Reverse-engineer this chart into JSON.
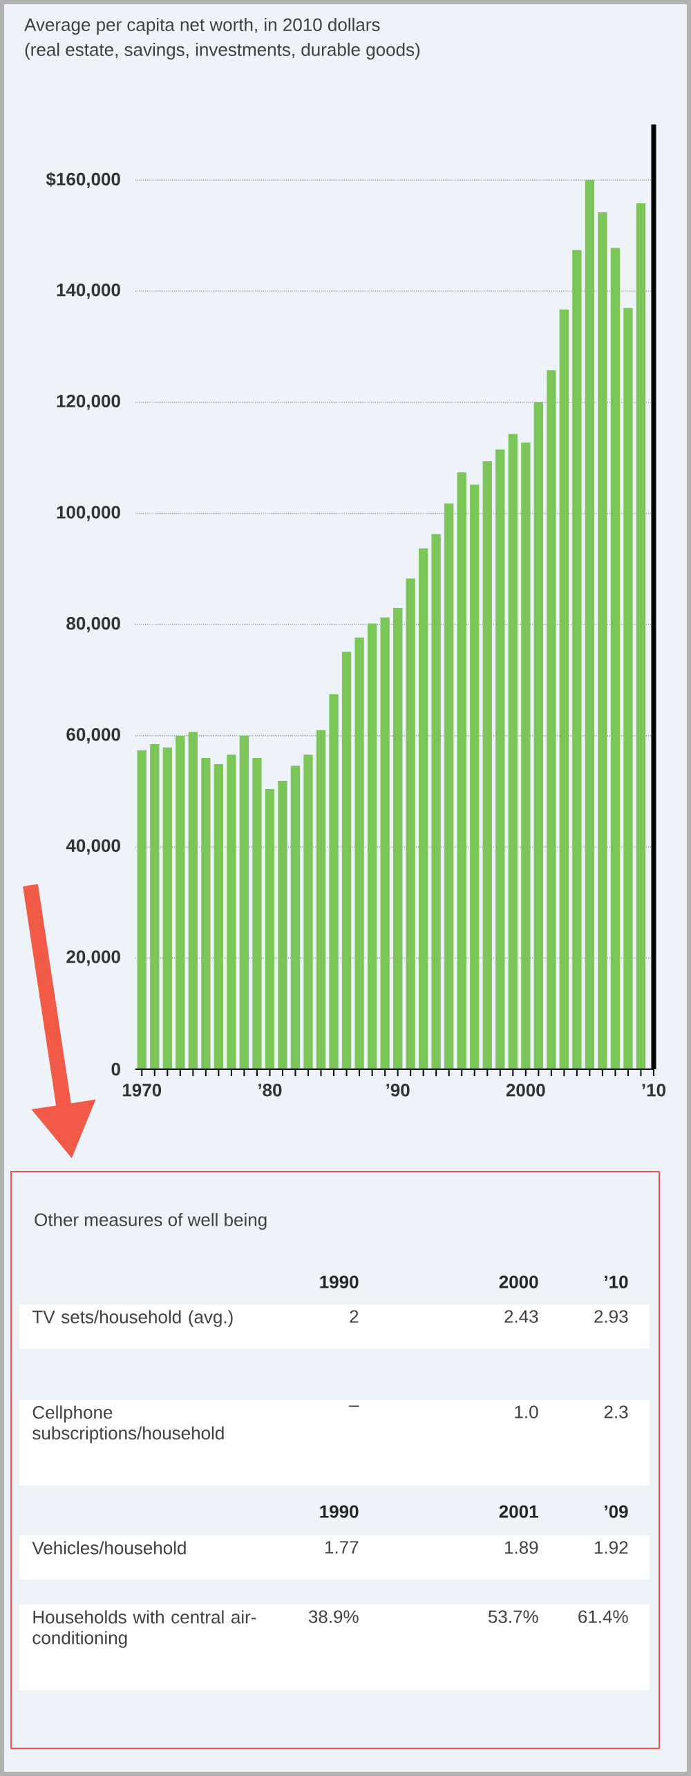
{
  "chart_data": [
    {
      "type": "bar",
      "title": "Average per capita net worth, in 2010 dollars",
      "subtitle": "(real estate, savings, investments, durable goods)",
      "color": "#7cc558",
      "x": [
        1970,
        1971,
        1972,
        1973,
        1974,
        1975,
        1976,
        1977,
        1978,
        1979,
        1980,
        1981,
        1982,
        1983,
        1984,
        1985,
        1986,
        1987,
        1988,
        1989,
        1990,
        1991,
        1992,
        1993,
        1994,
        1995,
        1996,
        1997,
        1998,
        1999,
        2000,
        2001,
        2002,
        2003,
        2004,
        2005,
        2006,
        2007,
        2008,
        2009
      ],
      "values": [
        57400,
        58500,
        57900,
        60000,
        60700,
        56000,
        54900,
        56600,
        60000,
        56000,
        50400,
        51900,
        54600,
        56600,
        61000,
        67500,
        75100,
        77700,
        80200,
        81300,
        83000,
        88300,
        93700,
        96300,
        101800,
        107400,
        105200,
        109400,
        111500,
        114300,
        112800,
        120100,
        125800,
        136700,
        147400,
        160000,
        154200,
        147800,
        137000,
        155800
      ],
      "xlim": [
        1969.5,
        2010
      ],
      "ylim": [
        0,
        170000
      ],
      "xticks": [
        1970,
        {
          "value": 1971,
          "label": null
        },
        {
          "value": 1972,
          "label": null
        },
        {
          "value": 1973,
          "label": null
        },
        {
          "value": 1974,
          "label": null
        },
        {
          "value": 1975,
          "label": null
        },
        {
          "value": 1976,
          "label": null
        },
        {
          "value": 1977,
          "label": null
        },
        {
          "value": 1978,
          "label": null
        },
        {
          "value": 1979,
          "label": null
        },
        {
          "value": 1980,
          "label": "’80"
        },
        {
          "value": 1981,
          "label": null
        },
        {
          "value": 1982,
          "label": null
        },
        {
          "value": 1983,
          "label": null
        },
        {
          "value": 1984,
          "label": null
        },
        {
          "value": 1985,
          "label": null
        },
        {
          "value": 1986,
          "label": null
        },
        {
          "value": 1987,
          "label": null
        },
        {
          "value": 1988,
          "label": null
        },
        {
          "value": 1989,
          "label": null
        },
        {
          "value": 1990,
          "label": "’90"
        },
        {
          "value": 1991,
          "label": null
        },
        {
          "value": 1992,
          "label": null
        },
        {
          "value": 1993,
          "label": null
        },
        {
          "value": 1994,
          "label": null
        },
        {
          "value": 1995,
          "label": null
        },
        {
          "value": 1996,
          "label": null
        },
        {
          "value": 1997,
          "label": null
        },
        {
          "value": 1998,
          "label": null
        },
        {
          "value": 1999,
          "label": null
        },
        2000,
        {
          "value": 2001,
          "label": null
        },
        {
          "value": 2002,
          "label": null
        },
        {
          "value": 2003,
          "label": null
        },
        {
          "value": 2004,
          "label": null
        },
        {
          "value": 2005,
          "label": null
        },
        {
          "value": 2006,
          "label": null
        },
        {
          "value": 2007,
          "label": null
        },
        {
          "value": 2008,
          "label": null
        },
        {
          "value": 2009,
          "label": null
        },
        {
          "value": 2010,
          "label": "’10"
        }
      ],
      "yticks": [
        0,
        {
          "value": 20000,
          "label": "20,000"
        },
        {
          "value": 40000,
          "label": "40,000"
        },
        {
          "value": 60000,
          "label": "60,000"
        },
        {
          "value": 80000,
          "label": "80,000"
        },
        {
          "value": 100000,
          "label": "100,000"
        },
        {
          "value": 120000,
          "label": "120,000"
        },
        {
          "value": 140000,
          "label": "140,000"
        },
        {
          "value": 160000,
          "label": "$160,000"
        }
      ],
      "grid": "y"
    },
    {
      "type": "other",
      "title": "Other measures of well being",
      "annotations": [
        "1990",
        "2000",
        "’10",
        "TV sets/household (avg.)",
        "2",
        "2.43",
        "2.93",
        "Cellphone subscriptions/household",
        "–",
        "1.0",
        "2.3",
        "1990",
        "2001",
        "’09",
        "Vehicles/household",
        "1.77",
        "1.89",
        "1.92",
        "Households with central air-conditioning",
        "38.9%",
        "53.7%",
        "61.4%"
      ]
    }
  ]
}
